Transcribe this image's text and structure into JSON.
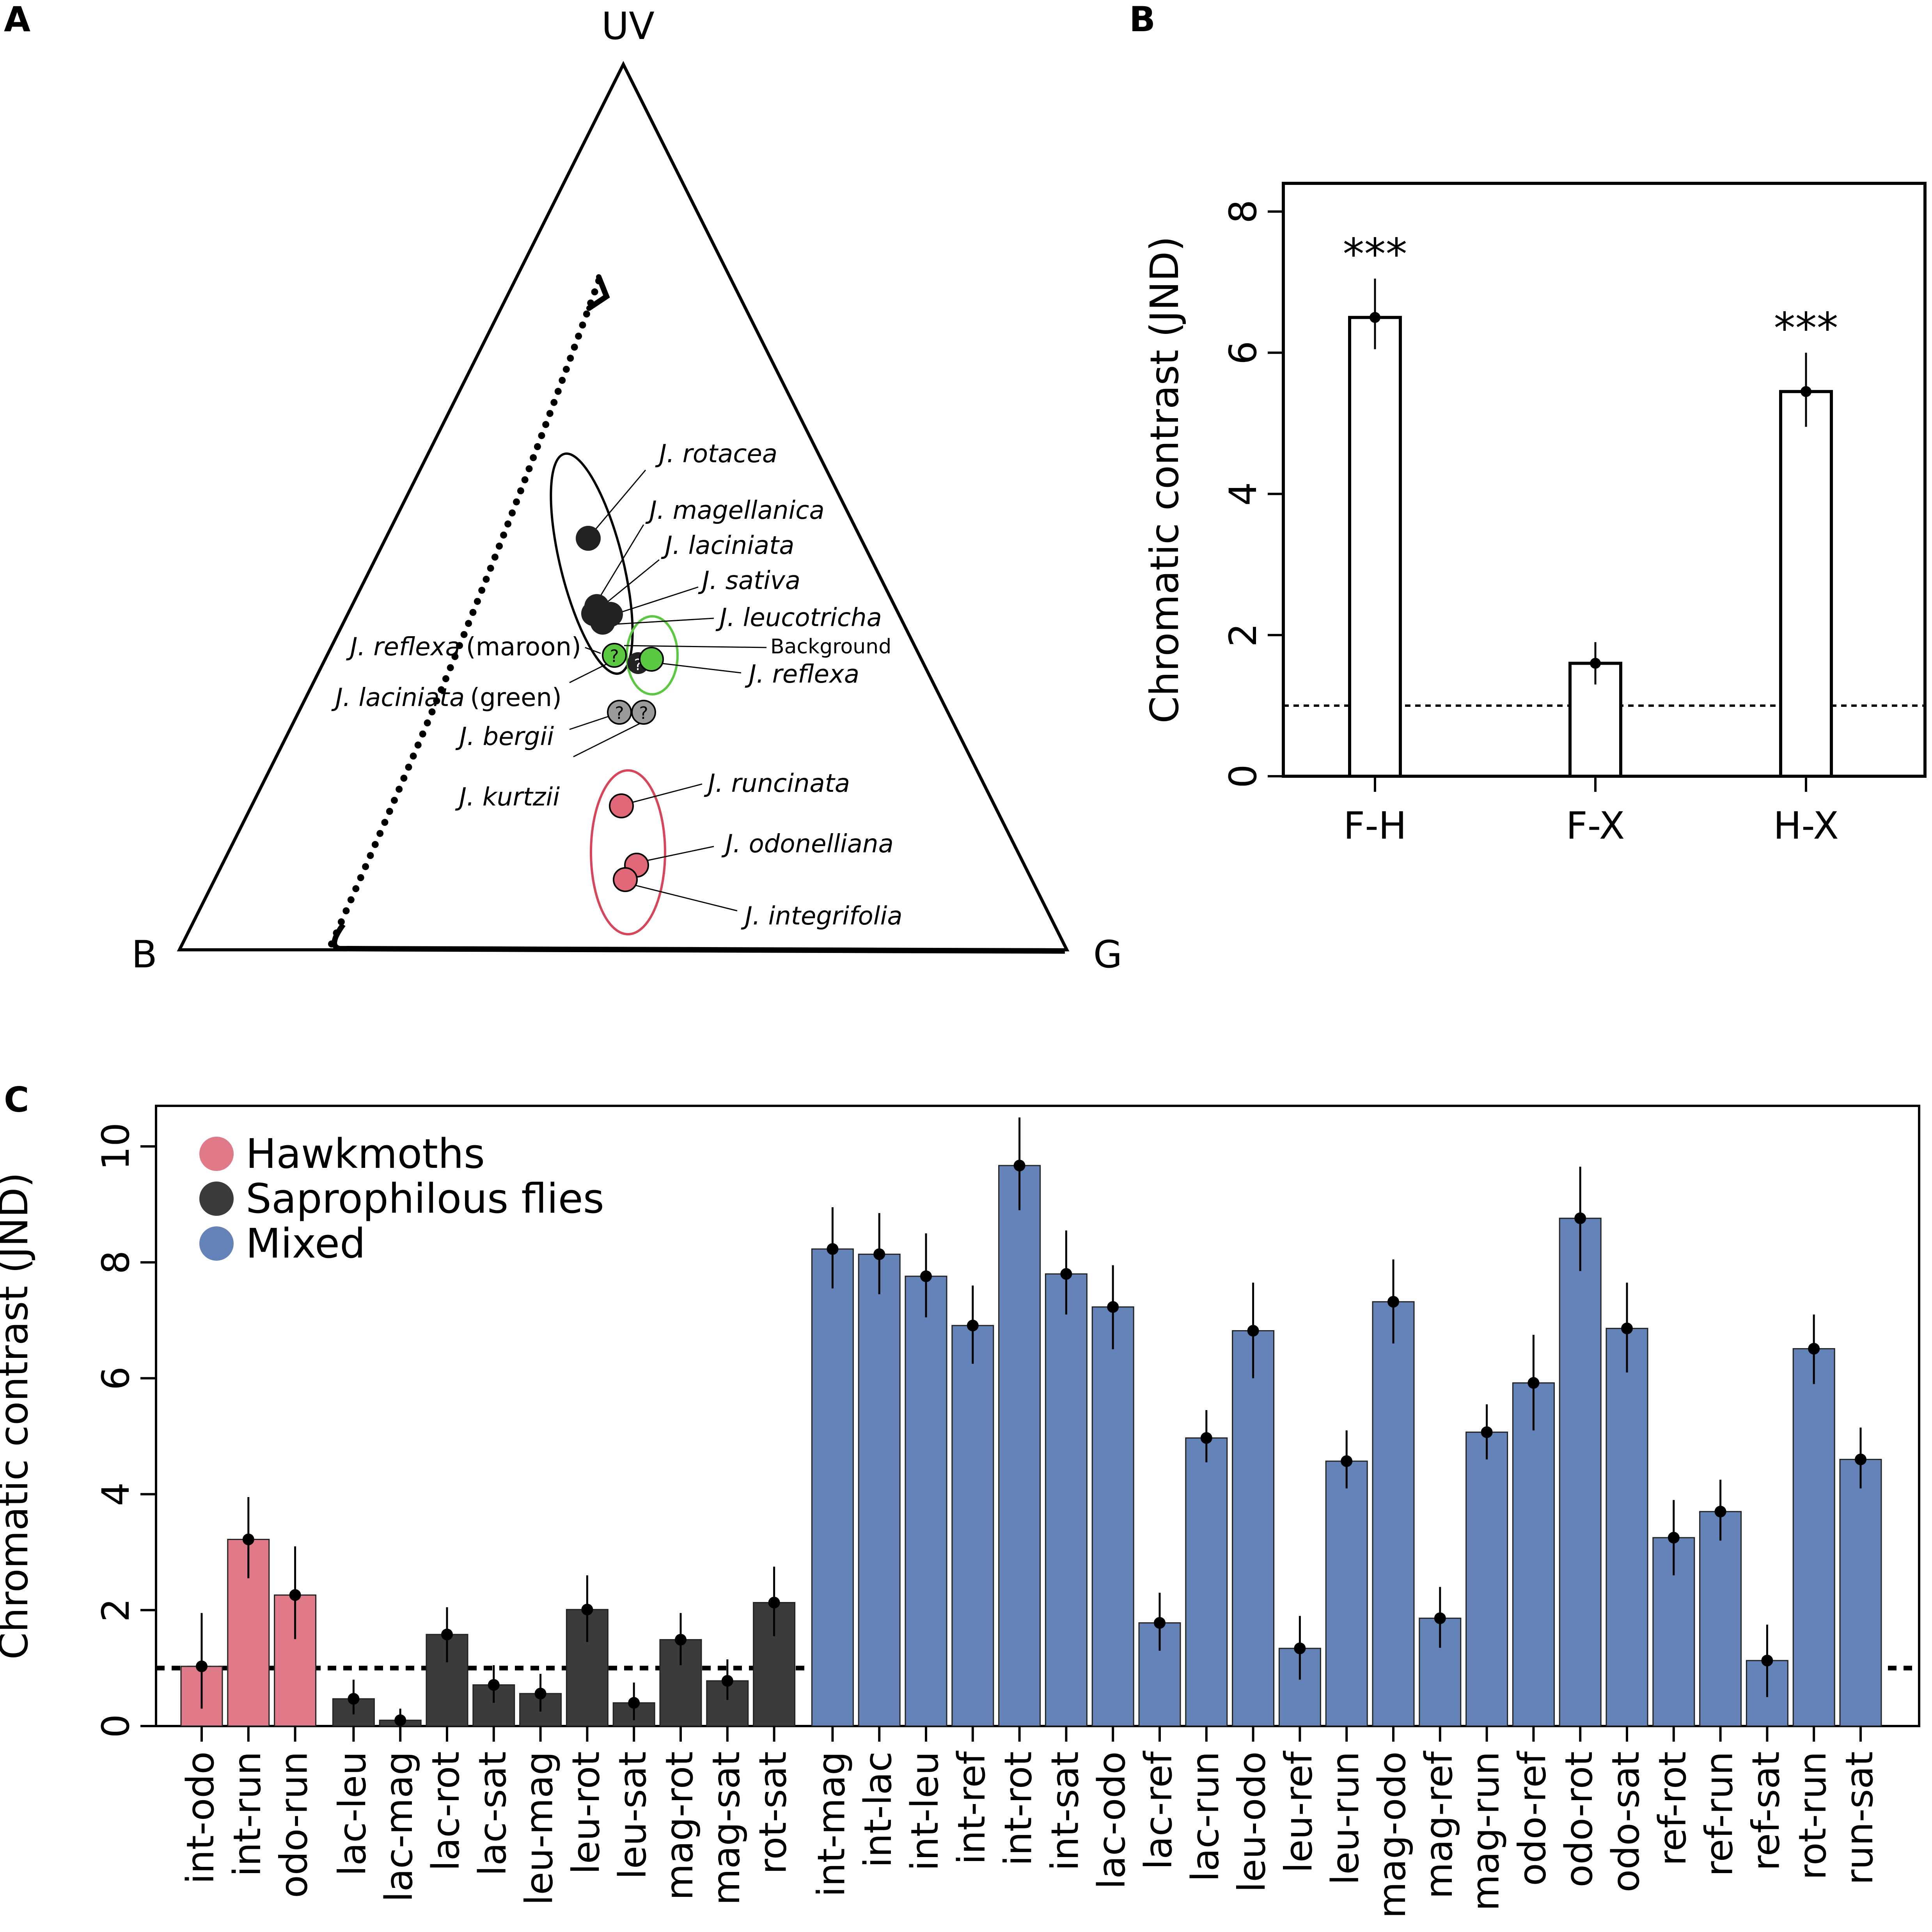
{
  "panels": {
    "A": {
      "letter": "A",
      "vertex_labels": {
        "top": "UV",
        "left": "B",
        "right": "G"
      },
      "points": [
        {
          "species": "J. rotacea",
          "group": "Saprophilous flies",
          "color": "#222222"
        },
        {
          "species": "J. magellanica",
          "group": "Saprophilous flies",
          "color": "#222222"
        },
        {
          "species": "J. laciniata",
          "group": "Saprophilous flies",
          "color": "#222222"
        },
        {
          "species": "J. sativa",
          "group": "Saprophilous flies",
          "color": "#222222"
        },
        {
          "species": "J. leucotricha",
          "group": "Saprophilous flies",
          "color": "#222222"
        },
        {
          "species": "J. reflexa",
          "group": "Mixed",
          "color": "#5bc842"
        },
        {
          "species": "J. runcinata",
          "group": "Hawkmoths",
          "color": "#e06878"
        },
        {
          "species": "J. odonelliana",
          "group": "Hawkmoths",
          "color": "#e06878"
        },
        {
          "species": "J. integrifolia",
          "group": "Hawkmoths",
          "color": "#e06878"
        },
        {
          "species": "J. bergii",
          "group": "Unknown",
          "color": "#9a9a9a"
        },
        {
          "species": "J. kurtzii",
          "group": "Unknown",
          "color": "#9a9a9a"
        }
      ],
      "labels": {
        "rotacea": "J. rotacea",
        "magellanica": "J. magellanica",
        "laciniata": "J. laciniata",
        "sativa": "J. sativa",
        "leucotricha": "J. leucotricha",
        "reflexa_maroon_sp": "J. reflexa",
        "reflexa_maroon_note": "(maroon)",
        "laciniata_green_sp": "J. laciniata",
        "laciniata_green_note": "(green)",
        "background": "Background",
        "reflexa": "J. reflexa",
        "bergii": "J. bergii",
        "kurtzii": "J. kurtzii",
        "runcinata": "J. runcinata",
        "odonelliana": "J. odonelliana",
        "integrifolia": "J. integrifolia",
        "unknown_marker": "?"
      }
    },
    "B": {
      "letter": "B"
    },
    "C": {
      "letter": "C"
    }
  },
  "chart_data": [
    {
      "type": "bar",
      "panel": "B",
      "title": "",
      "xlabel": "",
      "ylabel": "Chromatic contrast (JND)",
      "ylim": [
        0,
        8.4
      ],
      "yticks": [
        0,
        2,
        4,
        6,
        8
      ],
      "categories": [
        "F-H",
        "F-X",
        "H-X"
      ],
      "values": [
        6.5,
        1.6,
        5.45
      ],
      "error_low": [
        6.05,
        1.3,
        4.95
      ],
      "error_high": [
        7.05,
        1.9,
        6.0
      ],
      "annotations": [
        "***",
        "",
        "***"
      ],
      "threshold": 1,
      "bar_fill": "#ffffff",
      "bar_stroke": "#000000"
    },
    {
      "type": "bar",
      "panel": "C",
      "title": "",
      "xlabel": "",
      "ylabel": "Chromatic contrast (JND)",
      "ylim": [
        0,
        10.7
      ],
      "yticks": [
        0,
        2,
        4,
        6,
        8,
        10
      ],
      "threshold": 1,
      "legend": [
        {
          "name": "Hawkmoths",
          "color": "#e07a88"
        },
        {
          "name": "Saprophilous flies",
          "color": "#3b3b3b"
        },
        {
          "name": "Mixed",
          "color": "#6483b8"
        }
      ],
      "legend_position": "top-left",
      "categories": [
        "int-odo",
        "int-run",
        "odo-run",
        "lac-leu",
        "lac-mag",
        "lac-rot",
        "lac-sat",
        "leu-mag",
        "leu-rot",
        "leu-sat",
        "mag-rot",
        "mag-sat",
        "rot-sat",
        "int-mag",
        "int-lac",
        "int-leu",
        "int-ref",
        "int-rot",
        "int-sat",
        "lac-odo",
        "lac-ref",
        "lac-run",
        "leu-odo",
        "leu-ref",
        "leu-run",
        "mag-odo",
        "mag-ref",
        "mag-run",
        "odo-ref",
        "odo-rot",
        "odo-sat",
        "ref-rot",
        "ref-run",
        "ref-sat",
        "rot-run",
        "run-sat"
      ],
      "groups": [
        "Hawkmoths",
        "Hawkmoths",
        "Hawkmoths",
        "Saprophilous flies",
        "Saprophilous flies",
        "Saprophilous flies",
        "Saprophilous flies",
        "Saprophilous flies",
        "Saprophilous flies",
        "Saprophilous flies",
        "Saprophilous flies",
        "Saprophilous flies",
        "Saprophilous flies",
        "Mixed",
        "Mixed",
        "Mixed",
        "Mixed",
        "Mixed",
        "Mixed",
        "Mixed",
        "Mixed",
        "Mixed",
        "Mixed",
        "Mixed",
        "Mixed",
        "Mixed",
        "Mixed",
        "Mixed",
        "Mixed",
        "Mixed",
        "Mixed",
        "Mixed",
        "Mixed",
        "Mixed",
        "Mixed",
        "Mixed"
      ],
      "values": [
        1.03,
        3.22,
        2.26,
        0.47,
        0.1,
        1.58,
        0.71,
        0.56,
        2.01,
        0.4,
        1.49,
        0.78,
        2.13,
        8.23,
        8.14,
        7.76,
        6.91,
        9.67,
        7.8,
        7.23,
        1.78,
        4.97,
        6.82,
        1.34,
        4.57,
        7.32,
        1.86,
        5.07,
        5.92,
        8.76,
        6.86,
        3.25,
        3.7,
        1.13,
        6.51,
        4.6
      ],
      "error_low": [
        0.3,
        2.55,
        1.5,
        0.2,
        0.0,
        1.1,
        0.4,
        0.25,
        1.45,
        0.1,
        1.05,
        0.45,
        1.55,
        7.55,
        7.45,
        7.05,
        6.25,
        8.9,
        7.1,
        6.5,
        1.3,
        4.55,
        6.0,
        0.8,
        4.1,
        6.6,
        1.35,
        4.6,
        5.1,
        7.85,
        6.1,
        2.6,
        3.2,
        0.5,
        5.9,
        4.1
      ],
      "error_high": [
        1.95,
        3.95,
        3.1,
        0.8,
        0.3,
        2.05,
        1.05,
        0.9,
        2.6,
        0.75,
        1.95,
        1.15,
        2.75,
        8.95,
        8.85,
        8.5,
        7.6,
        10.5,
        8.55,
        7.95,
        2.3,
        5.45,
        7.65,
        1.9,
        5.1,
        8.05,
        2.4,
        5.55,
        6.75,
        9.65,
        7.65,
        3.9,
        4.25,
        1.75,
        7.1,
        5.15
      ]
    }
  ]
}
